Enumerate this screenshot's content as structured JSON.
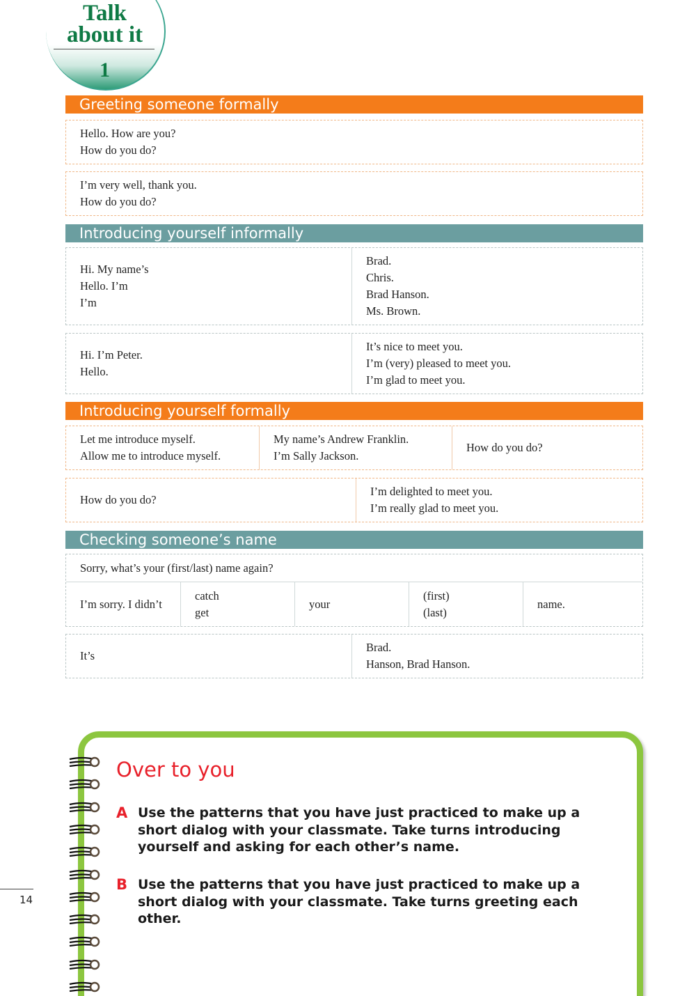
{
  "logo": {
    "line1": "Talk",
    "line2": "about it",
    "number": "1"
  },
  "sections": [
    {
      "title": "Greeting someone formally",
      "color": "#f47c1a",
      "boxes": [
        [
          "Hello. How are you?",
          "How do you do?"
        ],
        [
          "I’m very well, thank you.",
          "How do you do?"
        ]
      ]
    },
    {
      "title": "Introducing yourself informally",
      "color": "#6b9ea0",
      "boxes": [
        [
          [
            "Hi. My name’s",
            "Hello. I’m",
            "I’m"
          ],
          [
            "Brad.",
            "Chris.",
            "Brad Hanson.",
            "Ms. Brown."
          ]
        ],
        [
          [
            "Hi. I’m Peter.",
            "Hello."
          ],
          [
            "It’s nice to meet you.",
            "I’m (very) pleased to meet you.",
            "I’m glad to meet you."
          ]
        ]
      ]
    },
    {
      "title": "Introducing yourself formally",
      "color": "#f47c1a",
      "boxes": [
        [
          [
            "Let me introduce myself.",
            "Allow me to introduce myself."
          ],
          [
            "My name’s Andrew Franklin.",
            "I’m Sally Jackson."
          ],
          [
            "How do you do?"
          ]
        ],
        [
          [
            "How do you do?"
          ],
          [
            "I’m delighted to meet you.",
            "I’m really glad to meet you."
          ]
        ]
      ]
    },
    {
      "title": "Checking someone’s name",
      "color": "#6b9ea0",
      "boxes": [
        {
          "row1": "Sorry, what’s your (first/last) name again?",
          "row2": [
            [
              "I’m sorry. I didn’t"
            ],
            [
              "catch",
              "get"
            ],
            [
              "your"
            ],
            [
              "(first)",
              "(last)"
            ],
            [
              "name."
            ]
          ]
        },
        [
          [
            "It’s"
          ],
          [
            "Brad.",
            "Hanson, Brad Hanson."
          ]
        ]
      ]
    }
  ],
  "notebook": {
    "title": "Over to you",
    "title_color": "#e8202a",
    "border_color": "#8cc63f",
    "items": [
      {
        "letter": "A",
        "text": "Use the patterns that you have just practiced to make up a short dialog with your classmate. Take turns introducing yourself and asking for each other’s name."
      },
      {
        "letter": "B",
        "text": "Use the patterns that you have just practiced to make up a short dialog with your classmate. Take turns greeting each other."
      }
    ]
  },
  "page_number": "14"
}
